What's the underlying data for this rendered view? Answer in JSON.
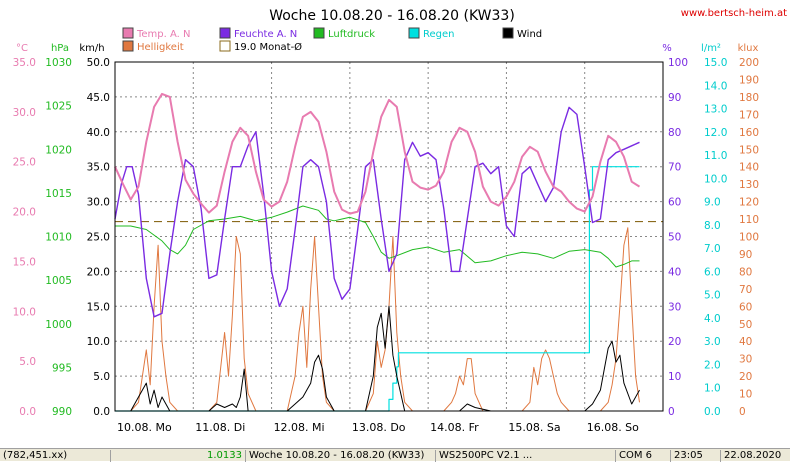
{
  "chart_data": {
    "type": "line",
    "title": "Woche 10.08.20 - 16.08.20 (KW33)",
    "website": "www.bertsch-heim.at",
    "x_tick_labels": [
      "10.08. Mo",
      "11.08. Di",
      "12.08. Mi",
      "13.08. Do",
      "14.08. Fr",
      "15.08. Sa",
      "16.08. So"
    ],
    "grid": true,
    "axes": {
      "temp": {
        "unit": "°C",
        "color": "#e87bb0",
        "ticks": [
          "0.0",
          "5.0",
          "10.0",
          "15.0",
          "20.0",
          "25.0",
          "30.0",
          "35.0"
        ],
        "range": [
          0,
          35
        ]
      },
      "pressure": {
        "unit": "hPa",
        "color": "#22bb22",
        "ticks": [
          "990",
          "995",
          "1000",
          "1005",
          "1010",
          "1015",
          "1020",
          "1025",
          "1030"
        ],
        "range": [
          990,
          1030
        ]
      },
      "wind": {
        "unit": "km/h",
        "color": "#000000",
        "ticks": [
          "0.0",
          "5.0",
          "10.0",
          "15.0",
          "20.0",
          "25.0",
          "30.0",
          "35.0",
          "40.0",
          "45.0",
          "50.0"
        ],
        "range": [
          0,
          50
        ]
      },
      "humidity": {
        "unit": "%",
        "color": "#7a2be2",
        "ticks": [
          "0",
          "10",
          "20",
          "30",
          "40",
          "50",
          "60",
          "70",
          "80",
          "90",
          "100"
        ],
        "range": [
          0,
          100
        ]
      },
      "rain": {
        "unit": "l/m²",
        "color": "#00cccc",
        "ticks": [
          "0.0",
          "1.0",
          "2.0",
          "3.0",
          "4.0",
          "5.0",
          "6.0",
          "7.0",
          "8.0",
          "9.0",
          "10.0",
          "11.0",
          "12.0",
          "13.0",
          "14.0",
          "15.0"
        ],
        "range": [
          0,
          15
        ]
      },
      "light": {
        "unit": "klux",
        "color": "#e07840",
        "ticks": [
          "0",
          "10",
          "20",
          "30",
          "40",
          "50",
          "60",
          "70",
          "80",
          "90",
          "100",
          "110",
          "120",
          "130",
          "140",
          "150",
          "160",
          "170",
          "180",
          "190",
          "200"
        ],
        "range": [
          0,
          200
        ]
      }
    },
    "legend": [
      {
        "label": "Temp. A. N",
        "color": "#e87bb0",
        "kind": "filled"
      },
      {
        "label": "Helligkeit",
        "color": "#e07840",
        "kind": "filled"
      },
      {
        "label": "Feuchte A. N",
        "color": "#7a2be2",
        "kind": "filled"
      },
      {
        "label": "19.0 Monat-Ø",
        "color": "#8b6b1e",
        "kind": "outline"
      },
      {
        "label": "Luftdruck",
        "color": "#22bb22",
        "kind": "filled"
      },
      {
        "label": "Regen",
        "color": "#00e0e0",
        "kind": "filled"
      },
      {
        "label": "Wind",
        "color": "#000000",
        "kind": "filled"
      }
    ],
    "month_average_temp": 19.0,
    "series": [
      {
        "name": "Temp. A. N",
        "axis": "temp",
        "color": "#e87bb0",
        "width": 2,
        "x": [
          0,
          0.1,
          0.2,
          0.3,
          0.4,
          0.5,
          0.6,
          0.7,
          0.8,
          0.9,
          1.0,
          1.1,
          1.2,
          1.3,
          1.4,
          1.5,
          1.6,
          1.7,
          1.8,
          1.9,
          2.0,
          2.1,
          2.2,
          2.3,
          2.4,
          2.5,
          2.6,
          2.7,
          2.8,
          2.9,
          3.0,
          3.1,
          3.2,
          3.3,
          3.4,
          3.5,
          3.6,
          3.7,
          3.8,
          3.9,
          4.0,
          4.1,
          4.2,
          4.3,
          4.4,
          4.5,
          4.6,
          4.7,
          4.8,
          4.9,
          5.0,
          5.1,
          5.2,
          5.3,
          5.4,
          5.5,
          5.6,
          5.7,
          5.8,
          5.9,
          6.0,
          6.1,
          6.2,
          6.3,
          6.4,
          6.5,
          6.6,
          6.7
        ],
        "y": [
          24.5,
          22.8,
          21.2,
          22.5,
          27,
          30.5,
          31.8,
          31.5,
          27,
          23.2,
          21.8,
          20.8,
          19.9,
          20.6,
          24,
          27,
          28.4,
          27.6,
          24,
          21.2,
          20.5,
          21,
          23,
          26.5,
          29.5,
          30,
          29,
          26,
          22,
          20.2,
          19.8,
          20,
          22,
          26,
          29.5,
          31.2,
          30.5,
          26,
          23,
          22.4,
          22.2,
          22.6,
          24,
          27,
          28.4,
          28,
          26,
          22.5,
          21,
          20.6,
          21.5,
          23,
          25.5,
          26.5,
          26,
          24,
          22.5,
          22,
          21,
          20.3,
          20,
          21.5,
          25,
          27.6,
          27,
          25.5,
          23,
          22.5
        ]
      },
      {
        "name": "Feuchte A. N",
        "axis": "humidity",
        "color": "#7a2be2",
        "width": 1.4,
        "x": [
          0,
          0.08,
          0.15,
          0.22,
          0.3,
          0.4,
          0.5,
          0.6,
          0.7,
          0.8,
          0.9,
          1.0,
          1.1,
          1.2,
          1.3,
          1.4,
          1.5,
          1.6,
          1.7,
          1.8,
          1.9,
          2.0,
          2.1,
          2.2,
          2.3,
          2.4,
          2.5,
          2.6,
          2.7,
          2.8,
          2.9,
          3.0,
          3.1,
          3.2,
          3.3,
          3.4,
          3.5,
          3.6,
          3.7,
          3.8,
          3.9,
          4.0,
          4.1,
          4.2,
          4.3,
          4.4,
          4.5,
          4.6,
          4.7,
          4.8,
          4.9,
          5.0,
          5.1,
          5.2,
          5.3,
          5.4,
          5.5,
          5.6,
          5.7,
          5.8,
          5.9,
          6.0,
          6.1,
          6.2,
          6.3,
          6.4,
          6.5,
          6.6,
          6.7
        ],
        "y": [
          55,
          65,
          70,
          70,
          62,
          38,
          27,
          28,
          45,
          60,
          72,
          70,
          58,
          38,
          39,
          55,
          70,
          70,
          76,
          80,
          62,
          40,
          30,
          35,
          52,
          70,
          72,
          70,
          60,
          38,
          32,
          35,
          52,
          70,
          72,
          55,
          40,
          45,
          72,
          77,
          73,
          74,
          72,
          58,
          40,
          40,
          55,
          70,
          71,
          68,
          70,
          53,
          50,
          68,
          70,
          65,
          60,
          64,
          80,
          87,
          85,
          70,
          54,
          55,
          72,
          74,
          75,
          76,
          77
        ]
      },
      {
        "name": "Luftdruck",
        "axis": "pressure",
        "color": "#22bb22",
        "width": 1,
        "x": [
          0,
          0.2,
          0.4,
          0.6,
          0.7,
          0.8,
          0.9,
          1.0,
          1.2,
          1.4,
          1.6,
          1.8,
          2.0,
          2.2,
          2.4,
          2.6,
          2.7,
          2.8,
          2.9,
          3.0,
          3.2,
          3.3,
          3.4,
          3.5,
          3.6,
          3.8,
          4.0,
          4.2,
          4.4,
          4.6,
          4.8,
          5.0,
          5.2,
          5.4,
          5.6,
          5.8,
          6.0,
          6.2,
          6.3,
          6.4,
          6.5,
          6.6,
          6.7
        ],
        "y": [
          1011.2,
          1011.2,
          1010.8,
          1009.5,
          1008.5,
          1008.0,
          1009.0,
          1010.8,
          1011.8,
          1012.0,
          1012.3,
          1011.8,
          1012.2,
          1012.8,
          1013.5,
          1013.0,
          1012.0,
          1011.8,
          1012.0,
          1012.2,
          1011.6,
          1010.0,
          1008.2,
          1007.5,
          1007.8,
          1008.5,
          1008.8,
          1008.2,
          1008.5,
          1007.0,
          1007.2,
          1007.8,
          1008.2,
          1008.0,
          1007.5,
          1008.3,
          1008.5,
          1008.2,
          1007.5,
          1006.5,
          1006.8,
          1007.2,
          1007.2
        ]
      },
      {
        "name": "Regen",
        "axis": "rain",
        "color": "#00e0e0",
        "width": 1.2,
        "step": true,
        "x": [
          0,
          3.45,
          3.5,
          3.55,
          3.6,
          3.62,
          3.7,
          6.0,
          6.05,
          6.06,
          6.1,
          6.12,
          6.2,
          6.7
        ],
        "y": [
          0,
          0,
          0.5,
          1.2,
          1.9,
          2.5,
          2.5,
          2.5,
          2.5,
          9.5,
          10.5,
          10.5,
          10.5,
          10.5
        ]
      },
      {
        "name": "Helligkeit",
        "axis": "light",
        "color": "#e07840",
        "width": 1,
        "x": [
          0,
          0.1,
          0.2,
          0.3,
          0.35,
          0.4,
          0.45,
          0.5,
          0.55,
          0.6,
          0.65,
          0.7,
          0.8,
          0.9,
          1.0,
          1.1,
          1.2,
          1.3,
          1.35,
          1.4,
          1.45,
          1.5,
          1.55,
          1.6,
          1.65,
          1.7,
          1.8,
          1.9,
          2.0,
          2.1,
          2.2,
          2.3,
          2.35,
          2.4,
          2.45,
          2.5,
          2.55,
          2.6,
          2.65,
          2.7,
          2.8,
          2.9,
          3.0,
          3.1,
          3.2,
          3.3,
          3.35,
          3.4,
          3.45,
          3.5,
          3.55,
          3.6,
          3.65,
          3.7,
          3.8,
          3.9,
          4.0,
          4.1,
          4.2,
          4.3,
          4.35,
          4.4,
          4.45,
          4.5,
          4.55,
          4.6,
          4.65,
          4.7,
          4.8,
          4.9,
          5.0,
          5.1,
          5.2,
          5.3,
          5.35,
          5.4,
          5.45,
          5.5,
          5.55,
          5.6,
          5.65,
          5.7,
          5.8,
          5.9,
          6.0,
          6.1,
          6.2,
          6.3,
          6.35,
          6.4,
          6.45,
          6.5,
          6.55,
          6.6,
          6.65,
          6.7
        ],
        "y": [
          0,
          0,
          0,
          5,
          20,
          35,
          15,
          60,
          95,
          40,
          20,
          5,
          0,
          0,
          0,
          0,
          0,
          5,
          25,
          45,
          20,
          55,
          100,
          90,
          30,
          10,
          0,
          0,
          0,
          0,
          0,
          20,
          45,
          60,
          25,
          70,
          100,
          60,
          20,
          5,
          0,
          0,
          0,
          0,
          0,
          10,
          40,
          25,
          35,
          60,
          100,
          45,
          20,
          5,
          0,
          0,
          0,
          0,
          0,
          5,
          10,
          20,
          15,
          30,
          30,
          10,
          5,
          0,
          0,
          0,
          0,
          0,
          0,
          5,
          25,
          15,
          30,
          35,
          30,
          20,
          10,
          5,
          0,
          0,
          0,
          0,
          0,
          5,
          15,
          30,
          60,
          95,
          105,
          60,
          20,
          5
        ]
      },
      {
        "name": "Wind",
        "axis": "wind",
        "color": "#000000",
        "width": 1,
        "x": [
          0,
          0.2,
          0.3,
          0.4,
          0.45,
          0.5,
          0.55,
          0.6,
          0.7,
          0.8,
          1.0,
          1.2,
          1.3,
          1.4,
          1.5,
          1.55,
          1.6,
          1.65,
          1.7,
          1.8,
          1.9,
          2.0,
          2.2,
          2.3,
          2.4,
          2.5,
          2.55,
          2.6,
          2.65,
          2.7,
          2.8,
          3.0,
          3.2,
          3.3,
          3.35,
          3.4,
          3.45,
          3.5,
          3.55,
          3.6,
          3.7,
          3.8,
          4.0,
          4.2,
          4.4,
          4.5,
          4.6,
          4.8,
          5.0,
          5.2,
          5.4,
          5.6,
          5.8,
          6.0,
          6.1,
          6.2,
          6.25,
          6.3,
          6.35,
          6.4,
          6.45,
          6.5,
          6.6,
          6.7
        ],
        "y": [
          0,
          0,
          2,
          4,
          1,
          3,
          0.5,
          2,
          0,
          0,
          0,
          0,
          1,
          0.5,
          1,
          0.5,
          2,
          6,
          0,
          0,
          0,
          0,
          0,
          1,
          2,
          4,
          7,
          8,
          6,
          2,
          0,
          0,
          0,
          5,
          12,
          14,
          9,
          15,
          8,
          5,
          0,
          0,
          0,
          0,
          0,
          1,
          0.5,
          0,
          0,
          0,
          0,
          0,
          0,
          0,
          1,
          3,
          6,
          9,
          10,
          7,
          8,
          4,
          1,
          3
        ]
      }
    ]
  },
  "statusbar": {
    "coords": "(782,451.xx)",
    "value": "1.0133",
    "period": "Woche 10.08.20 - 16.08.20 (KW33)",
    "version": "WS2500PC V2.1 ...",
    "mode": "COM 6",
    "time": "23:05",
    "date": "22.08.2020"
  }
}
